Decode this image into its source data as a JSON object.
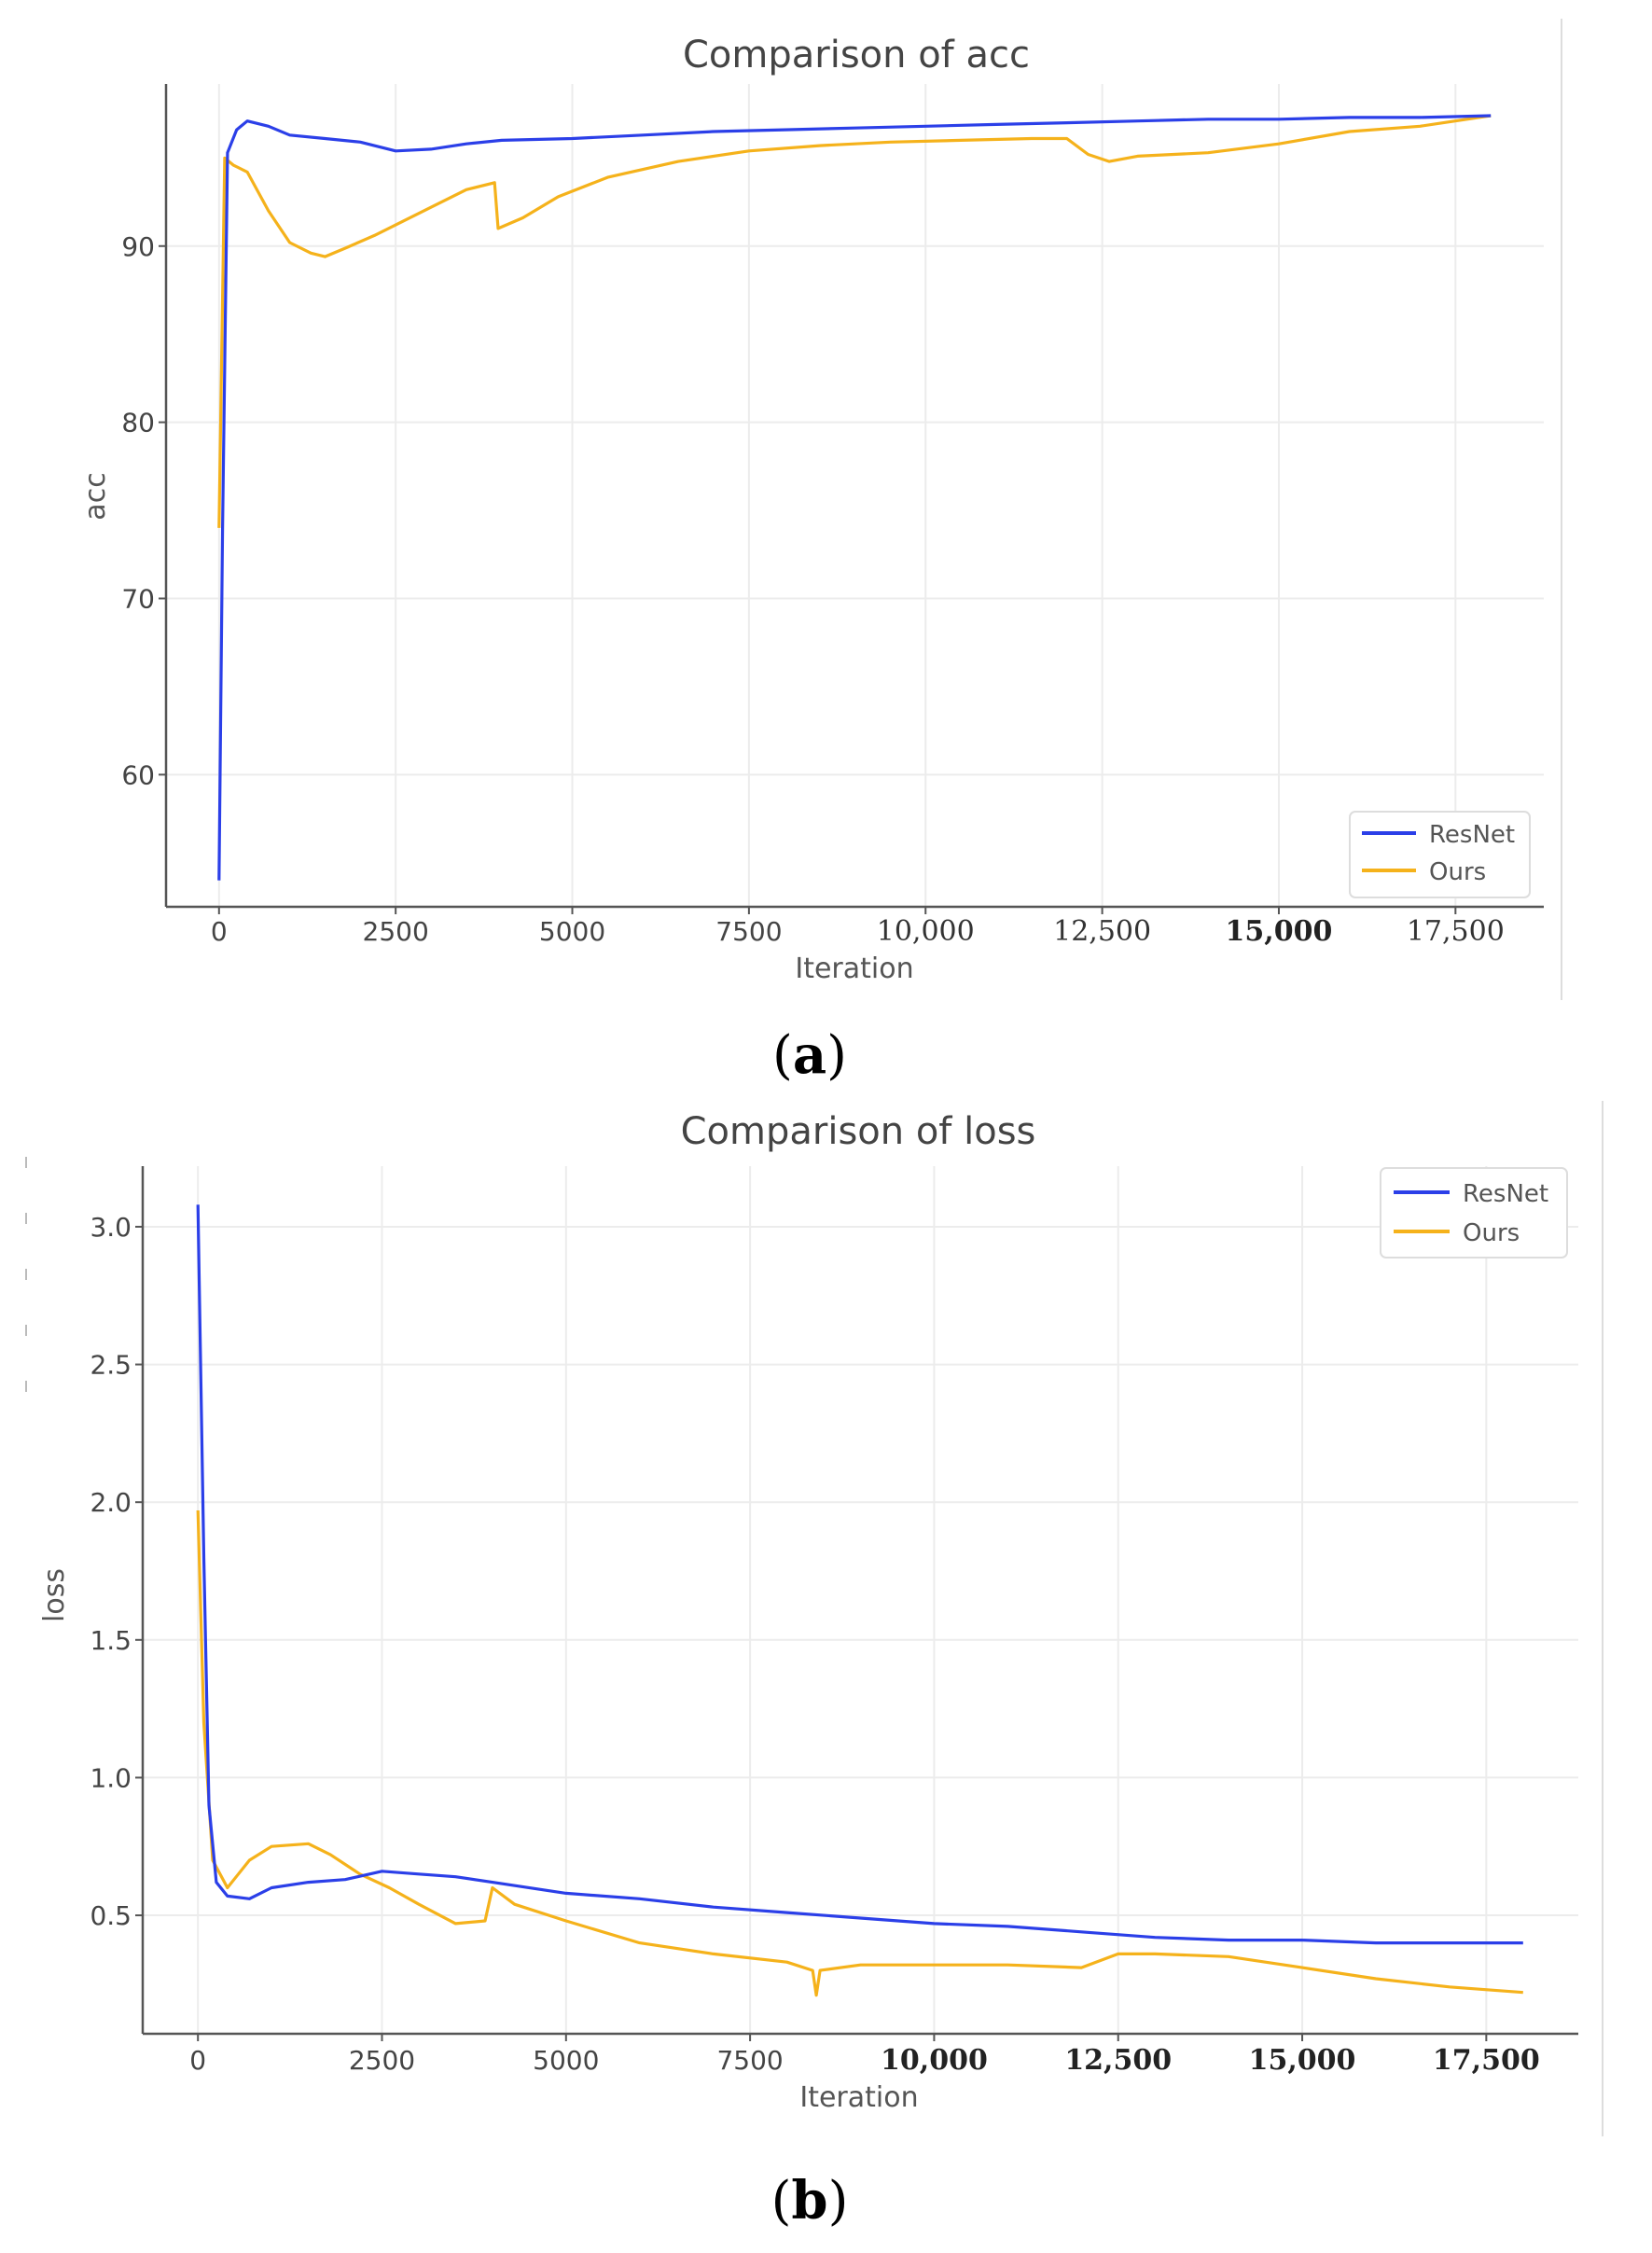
{
  "figure": {
    "caption_a": "a",
    "caption_b": "b"
  },
  "chart_data": [
    {
      "type": "line",
      "title": "Comparison of acc",
      "xlabel": "Iteration",
      "ylabel": "acc",
      "xlim": [
        -750,
        18750
      ],
      "ylim": [
        52.5,
        99.2
      ],
      "x_ticks": [
        0,
        2500,
        5000,
        7500,
        10000,
        12500,
        15000,
        17500
      ],
      "x_tick_labels": [
        "0",
        "2500",
        "5000",
        "7500",
        "10,000",
        "12,500",
        "15,000",
        "17,500"
      ],
      "y_ticks": [
        60,
        70,
        80,
        90
      ],
      "y_tick_labels": [
        "60",
        "70",
        "80",
        "90"
      ],
      "grid": true,
      "legend_position": "bottom-right",
      "series": [
        {
          "name": "ResNet",
          "color": "#2b3fe8",
          "points": [
            [
              0,
              54
            ],
            [
              50,
              74
            ],
            [
              120,
              95.3
            ],
            [
              250,
              96.6
            ],
            [
              400,
              97.1
            ],
            [
              700,
              96.8
            ],
            [
              1000,
              96.3
            ],
            [
              1500,
              96.1
            ],
            [
              2000,
              95.9
            ],
            [
              2500,
              95.4
            ],
            [
              3000,
              95.5
            ],
            [
              3500,
              95.8
            ],
            [
              4000,
              96.0
            ],
            [
              5000,
              96.1
            ],
            [
              6000,
              96.3
            ],
            [
              7000,
              96.5
            ],
            [
              8000,
              96.6
            ],
            [
              9000,
              96.7
            ],
            [
              10000,
              96.8
            ],
            [
              11000,
              96.9
            ],
            [
              12000,
              97.0
            ],
            [
              13000,
              97.1
            ],
            [
              14000,
              97.2
            ],
            [
              15000,
              97.2
            ],
            [
              16000,
              97.3
            ],
            [
              17000,
              97.3
            ],
            [
              18000,
              97.4
            ]
          ]
        },
        {
          "name": "Ours",
          "color": "#f5b21b",
          "points": [
            [
              0,
              74
            ],
            [
              80,
              95.0
            ],
            [
              200,
              94.6
            ],
            [
              400,
              94.2
            ],
            [
              700,
              92.0
            ],
            [
              1000,
              90.2
            ],
            [
              1300,
              89.6
            ],
            [
              1500,
              89.4
            ],
            [
              1800,
              89.9
            ],
            [
              2200,
              90.6
            ],
            [
              2600,
              91.4
            ],
            [
              3000,
              92.2
            ],
            [
              3500,
              93.2
            ],
            [
              3900,
              93.6
            ],
            [
              3950,
              91.0
            ],
            [
              4300,
              91.6
            ],
            [
              4800,
              92.8
            ],
            [
              5500,
              93.9
            ],
            [
              6500,
              94.8
            ],
            [
              7500,
              95.4
            ],
            [
              8500,
              95.7
            ],
            [
              9500,
              95.9
            ],
            [
              10500,
              96.0
            ],
            [
              11500,
              96.1
            ],
            [
              12000,
              96.1
            ],
            [
              12300,
              95.2
            ],
            [
              12600,
              94.8
            ],
            [
              13000,
              95.1
            ],
            [
              14000,
              95.3
            ],
            [
              15000,
              95.8
            ],
            [
              16000,
              96.5
            ],
            [
              17000,
              96.8
            ],
            [
              18000,
              97.4
            ]
          ]
        }
      ]
    },
    {
      "type": "line",
      "title": "Comparison of loss",
      "xlabel": "Iteration",
      "ylabel": "loss",
      "xlim": [
        -750,
        18750
      ],
      "ylim": [
        0.07,
        3.22
      ],
      "x_ticks": [
        0,
        2500,
        5000,
        7500,
        10000,
        12500,
        15000,
        17500
      ],
      "x_tick_labels": [
        "0",
        "2500",
        "5000",
        "7500",
        "10,000",
        "12,500",
        "15,000",
        "17,500"
      ],
      "y_ticks": [
        0.5,
        1.0,
        1.5,
        2.0,
        2.5,
        3.0
      ],
      "y_tick_labels": [
        "0.5",
        "1.0",
        "1.5",
        "2.0",
        "2.5",
        "3.0"
      ],
      "grid": true,
      "legend_position": "top-right",
      "series": [
        {
          "name": "ResNet",
          "color": "#2b3fe8",
          "points": [
            [
              0,
              3.08
            ],
            [
              80,
              1.8
            ],
            [
              150,
              0.9
            ],
            [
              250,
              0.62
            ],
            [
              400,
              0.57
            ],
            [
              700,
              0.56
            ],
            [
              1000,
              0.6
            ],
            [
              1500,
              0.62
            ],
            [
              2000,
              0.63
            ],
            [
              2500,
              0.66
            ],
            [
              3000,
              0.65
            ],
            [
              3500,
              0.64
            ],
            [
              4000,
              0.62
            ],
            [
              5000,
              0.58
            ],
            [
              6000,
              0.56
            ],
            [
              7000,
              0.53
            ],
            [
              8000,
              0.51
            ],
            [
              9000,
              0.49
            ],
            [
              10000,
              0.47
            ],
            [
              11000,
              0.46
            ],
            [
              12000,
              0.44
            ],
            [
              13000,
              0.42
            ],
            [
              14000,
              0.41
            ],
            [
              15000,
              0.41
            ],
            [
              16000,
              0.4
            ],
            [
              17000,
              0.4
            ],
            [
              18000,
              0.4
            ]
          ]
        },
        {
          "name": "Ours",
          "color": "#f5b21b",
          "points": [
            [
              0,
              1.97
            ],
            [
              80,
              1.2
            ],
            [
              200,
              0.7
            ],
            [
              400,
              0.6
            ],
            [
              700,
              0.7
            ],
            [
              1000,
              0.75
            ],
            [
              1500,
              0.76
            ],
            [
              1800,
              0.72
            ],
            [
              2200,
              0.65
            ],
            [
              2600,
              0.6
            ],
            [
              3000,
              0.54
            ],
            [
              3500,
              0.47
            ],
            [
              3900,
              0.48
            ],
            [
              4000,
              0.6
            ],
            [
              4300,
              0.54
            ],
            [
              5000,
              0.48
            ],
            [
              6000,
              0.4
            ],
            [
              7000,
              0.36
            ],
            [
              8000,
              0.33
            ],
            [
              8350,
              0.3
            ],
            [
              8400,
              0.21
            ],
            [
              8450,
              0.3
            ],
            [
              9000,
              0.32
            ],
            [
              10000,
              0.32
            ],
            [
              11000,
              0.32
            ],
            [
              12000,
              0.31
            ],
            [
              12500,
              0.36
            ],
            [
              13000,
              0.36
            ],
            [
              14000,
              0.35
            ],
            [
              15000,
              0.31
            ],
            [
              16000,
              0.27
            ],
            [
              17000,
              0.24
            ],
            [
              18000,
              0.22
            ]
          ]
        }
      ]
    }
  ]
}
